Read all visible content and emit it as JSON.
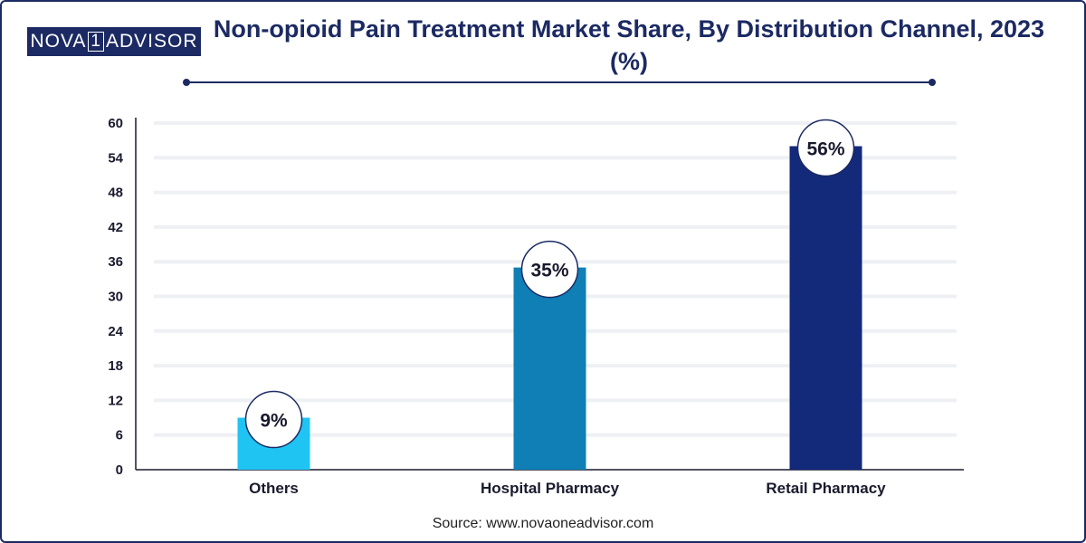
{
  "brand": {
    "logo_left": "NOVA",
    "logo_mid": "1",
    "logo_right": "ADVISOR"
  },
  "title": "Non-opioid Pain Treatment Market Share, By Distribution Channel, 2023 (%)",
  "source": "Source: www.novaoneadvisor.com",
  "colors": {
    "brand_navy": "#1c2a63",
    "others": "#1fc4f3",
    "hospital_pharmacy": "#0f7fb5",
    "retail_pharmacy": "#13297a"
  },
  "chart_data": {
    "type": "bar",
    "title": "Non-opioid Pain Treatment Market Share, By Distribution Channel, 2023 (%)",
    "xlabel": "",
    "ylabel": "",
    "categories": [
      "Others",
      "Hospital Pharmacy",
      "Retail Pharmacy"
    ],
    "values": [
      9,
      35,
      56
    ],
    "data_labels": [
      "9%",
      "35%",
      "56%"
    ],
    "bar_colors": [
      "#1fc4f3",
      "#0f7fb5",
      "#13297a"
    ],
    "ylim": [
      0,
      60
    ],
    "yticks": [
      0,
      6,
      12,
      18,
      24,
      30,
      36,
      42,
      48,
      54,
      60
    ],
    "grid": true,
    "legend": "none"
  }
}
